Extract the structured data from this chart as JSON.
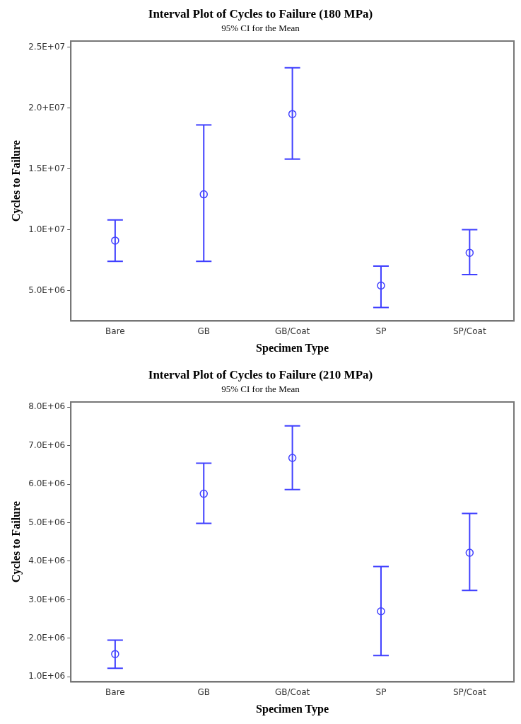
{
  "chart_data": [
    {
      "type": "scatter",
      "title": "Interval Plot of Cycles to Failure (180 MPa)",
      "subtitle": "95% CI for the Mean",
      "xlabel": "Specimen Type",
      "ylabel": "Cycles to Failure",
      "marker": "circle",
      "categories": [
        "Bare",
        "GB",
        "GB/Coat",
        "SP",
        "SP/Coat"
      ],
      "ylim": [
        2500000,
        25500000
      ],
      "yticks": [
        {
          "value": 5000000,
          "label": "5.0E+06"
        },
        {
          "value": 10000000,
          "label": "1.0E+07"
        },
        {
          "value": 15000000,
          "label": "1.5E+07"
        },
        {
          "value": 20000000,
          "label": "2.0+E07"
        },
        {
          "value": 25000000,
          "label": "2.5E+07"
        }
      ],
      "series": [
        {
          "color": "#4040ff",
          "values": [
            9100000,
            12900000,
            19500000,
            5400000,
            8100000
          ],
          "errors": [
            [
              7400000,
              10800000
            ],
            [
              7400000,
              18600000
            ],
            [
              15800000,
              23300000
            ],
            [
              3600000,
              7000000
            ],
            [
              6300000,
              10000000
            ]
          ]
        }
      ]
    },
    {
      "type": "scatter",
      "title": "Interval Plot of Cycles to Failure (210 MPa)",
      "subtitle": "95% CI for the Mean",
      "xlabel": "Specimen Type",
      "ylabel": "Cycles to Failure",
      "marker": "circle",
      "categories": [
        "Bare",
        "GB",
        "GB/Coat",
        "SP",
        "SP/Coat"
      ],
      "ylim": [
        870000,
        8130000
      ],
      "yticks": [
        {
          "value": 1000000,
          "label": "1.0E+06"
        },
        {
          "value": 2000000,
          "label": "2.0E+06"
        },
        {
          "value": 3000000,
          "label": "3.0E+06"
        },
        {
          "value": 4000000,
          "label": "4.0E+06"
        },
        {
          "value": 5000000,
          "label": "5.0E+06"
        },
        {
          "value": 6000000,
          "label": "6.0E+06"
        },
        {
          "value": 7000000,
          "label": "7.0E+06"
        },
        {
          "value": 8000000,
          "label": "8.0E+06"
        }
      ],
      "series": [
        {
          "color": "#4040ff",
          "values": [
            1590000,
            5750000,
            6680000,
            2700000,
            4220000
          ],
          "errors": [
            [
              1220000,
              1950000
            ],
            [
              4980000,
              6540000
            ],
            [
              5860000,
              7510000
            ],
            [
              1550000,
              3860000
            ],
            [
              3240000,
              5240000
            ]
          ]
        }
      ]
    }
  ]
}
